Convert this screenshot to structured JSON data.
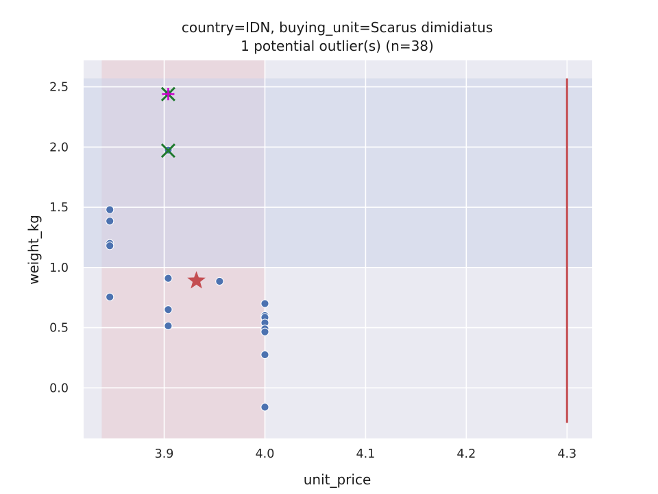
{
  "chart_data": {
    "type": "scatter",
    "title_line1": "country=IDN, buying_unit=Scarus dimidiatus",
    "title_line2": "1 potential outlier(s) (n=38)",
    "xlabel": "unit_price",
    "ylabel": "weight_kg",
    "xlim": [
      3.82,
      4.325
    ],
    "ylim": [
      -0.42,
      2.72
    ],
    "x_ticks": [
      3.9,
      4.0,
      4.1,
      4.2,
      4.3
    ],
    "x_tick_labels": [
      "3.9",
      "4.0",
      "4.1",
      "4.2",
      "4.3"
    ],
    "y_ticks": [
      0.0,
      0.5,
      1.0,
      1.5,
      2.0,
      2.5
    ],
    "y_tick_labels": [
      "0.0",
      "0.5",
      "1.0",
      "1.5",
      "2.0",
      "2.5"
    ],
    "grid": true,
    "colors": {
      "background": "#eaeaf2",
      "grid": "#ffffff",
      "points": "#4c72b0",
      "x_band": "#e8c8cf",
      "y_band": "#ccd3ea",
      "star": "#c44e52",
      "vline": "#c44e52",
      "x_marker": "#1f7a2e",
      "plus_marker": "#cc00cc"
    },
    "x_band": [
      3.838,
      4.0
    ],
    "y_band": [
      1.0,
      2.57
    ],
    "vertical_line": {
      "x": 4.3,
      "y0": -0.29,
      "y1": 2.57
    },
    "star_point": {
      "x": 3.932,
      "y": 0.89
    },
    "x_markers": [
      {
        "x": 3.904,
        "y": 2.44
      },
      {
        "x": 3.904,
        "y": 1.97
      }
    ],
    "plus_markers": [
      {
        "x": 3.904,
        "y": 2.44
      }
    ],
    "points": [
      {
        "x": 3.846,
        "y": 1.48
      },
      {
        "x": 3.846,
        "y": 1.385
      },
      {
        "x": 3.846,
        "y": 1.2
      },
      {
        "x": 3.846,
        "y": 1.18
      },
      {
        "x": 3.846,
        "y": 0.755
      },
      {
        "x": 3.904,
        "y": 2.445
      },
      {
        "x": 3.904,
        "y": 1.975
      },
      {
        "x": 3.904,
        "y": 0.91
      },
      {
        "x": 3.904,
        "y": 0.65
      },
      {
        "x": 3.904,
        "y": 0.515
      },
      {
        "x": 3.955,
        "y": 0.885
      },
      {
        "x": 4.0,
        "y": 0.7
      },
      {
        "x": 4.0,
        "y": 0.6
      },
      {
        "x": 4.0,
        "y": 0.585
      },
      {
        "x": 4.0,
        "y": 0.54
      },
      {
        "x": 4.0,
        "y": 0.49
      },
      {
        "x": 4.0,
        "y": 0.465
      },
      {
        "x": 4.0,
        "y": 0.275
      },
      {
        "x": 4.0,
        "y": -0.16
      }
    ]
  }
}
